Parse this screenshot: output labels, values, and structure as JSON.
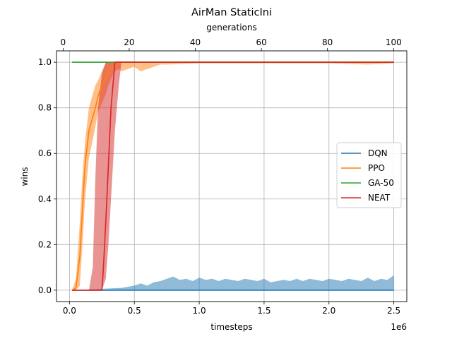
{
  "chart_data": {
    "type": "line",
    "title": "AirMan StaticIni",
    "xlabel": "timesteps",
    "ylabel": "wins",
    "x_top_label": "generations",
    "x_offset_text": "1e6",
    "xlim": [
      -0.1,
      2.6
    ],
    "ylim": [
      -0.05,
      1.05
    ],
    "top_xlim": [
      -2,
      104
    ],
    "x_ticks": [
      0.0,
      0.5,
      1.0,
      1.5,
      2.0,
      2.5
    ],
    "x_tick_labels": [
      "0.0",
      "0.5",
      "1.0",
      "1.5",
      "2.0",
      "2.5"
    ],
    "y_ticks": [
      0.0,
      0.2,
      0.4,
      0.6,
      0.8,
      1.0
    ],
    "y_tick_labels": [
      "0.0",
      "0.2",
      "0.4",
      "0.6",
      "0.8",
      "1.0"
    ],
    "top_ticks": [
      0,
      20,
      40,
      60,
      80,
      100
    ],
    "top_tick_labels": [
      "0",
      "20",
      "40",
      "60",
      "80",
      "100"
    ],
    "grid": true,
    "legend_position": "center-right",
    "series": [
      {
        "name": "DQN",
        "color": "#1f77b4",
        "x": [
          0.02,
          0.25,
          0.5,
          1.0,
          1.5,
          2.0,
          2.5
        ],
        "y": [
          0,
          0,
          0,
          0,
          0,
          0,
          0
        ],
        "band_x": [
          0.02,
          0.4,
          0.45,
          0.5,
          0.55,
          0.6,
          0.65,
          0.7,
          0.75,
          0.8,
          0.85,
          0.9,
          0.95,
          1.0,
          1.05,
          1.1,
          1.15,
          1.2,
          1.25,
          1.3,
          1.35,
          1.4,
          1.45,
          1.5,
          1.55,
          1.6,
          1.65,
          1.7,
          1.75,
          1.8,
          1.85,
          1.9,
          1.95,
          2.0,
          2.05,
          2.1,
          2.15,
          2.2,
          2.25,
          2.3,
          2.35,
          2.4,
          2.45,
          2.5
        ],
        "band_upper": [
          0,
          0.01,
          0.015,
          0.02,
          0.03,
          0.02,
          0.035,
          0.04,
          0.05,
          0.06,
          0.045,
          0.05,
          0.04,
          0.055,
          0.045,
          0.05,
          0.04,
          0.05,
          0.045,
          0.04,
          0.05,
          0.045,
          0.04,
          0.05,
          0.035,
          0.04,
          0.045,
          0.04,
          0.05,
          0.04,
          0.05,
          0.045,
          0.04,
          0.05,
          0.045,
          0.04,
          0.05,
          0.045,
          0.04,
          0.055,
          0.04,
          0.05,
          0.045,
          0.065
        ],
        "band_lower": [
          0,
          0,
          0,
          0,
          0,
          0,
          0,
          0,
          0,
          0,
          0,
          0,
          0,
          0,
          0,
          0,
          0,
          0,
          0,
          0,
          0,
          0,
          0,
          0,
          0,
          0,
          0,
          0,
          0,
          0,
          0,
          0,
          0,
          0,
          0,
          0,
          0,
          0,
          0,
          0,
          0,
          0,
          0,
          0
        ]
      },
      {
        "name": "PPO",
        "color": "#ff7f0e",
        "x": [
          0.02,
          0.05,
          0.08,
          0.1,
          0.12,
          0.15,
          0.18,
          0.2,
          0.22,
          0.25,
          0.28,
          0.3,
          0.33,
          0.35,
          0.38,
          0.4,
          0.45,
          0.5,
          0.6,
          0.7,
          1.0,
          1.5,
          2.0,
          2.5
        ],
        "y": [
          0,
          0.01,
          0.15,
          0.35,
          0.55,
          0.7,
          0.76,
          0.8,
          0.85,
          0.9,
          0.93,
          0.96,
          0.98,
          0.99,
          1.0,
          1.0,
          1.0,
          1.0,
          1.0,
          1.0,
          1.0,
          1.0,
          1.0,
          1.0
        ],
        "band_x": [
          0.02,
          0.05,
          0.08,
          0.1,
          0.12,
          0.15,
          0.18,
          0.2,
          0.22,
          0.25,
          0.28,
          0.3,
          0.33,
          0.35,
          0.38,
          0.4,
          0.45,
          0.5,
          0.55,
          0.6,
          0.65,
          0.7,
          0.75,
          1.0,
          1.5,
          2.0,
          2.3,
          2.5
        ],
        "band_upper": [
          0,
          0.05,
          0.3,
          0.5,
          0.65,
          0.8,
          0.86,
          0.9,
          0.92,
          0.96,
          1.0,
          1.0,
          1.0,
          1.0,
          1.0,
          1.0,
          1.0,
          1.0,
          1.0,
          1.0,
          1.0,
          1.0,
          1.0,
          1.0,
          1.0,
          1.0,
          1.0,
          1.0
        ],
        "band_lower": [
          0,
          0,
          0.02,
          0.2,
          0.4,
          0.58,
          0.66,
          0.72,
          0.78,
          0.82,
          0.86,
          0.9,
          0.94,
          0.96,
          0.97,
          0.96,
          0.97,
          0.98,
          0.96,
          0.97,
          0.98,
          0.99,
          0.99,
          0.995,
          0.995,
          0.995,
          0.99,
          0.995
        ]
      },
      {
        "name": "GA-50",
        "color": "#2ca02c",
        "x": [
          0.02,
          0.5,
          1.0,
          1.5,
          2.0,
          2.5
        ],
        "y": [
          1.0,
          1.0,
          1.0,
          1.0,
          1.0,
          1.0
        ]
      },
      {
        "name": "NEAT",
        "color": "#d62728",
        "x": [
          0.02,
          0.25,
          0.26,
          0.28,
          0.3,
          0.32,
          0.35,
          0.38,
          0.5,
          1.0,
          1.5,
          2.0,
          2.5
        ],
        "y": [
          0,
          0,
          0.08,
          0.3,
          0.55,
          0.8,
          1.0,
          1.0,
          1.0,
          1.0,
          1.0,
          1.0,
          1.0
        ],
        "band_x": [
          0.02,
          0.15,
          0.18,
          0.2,
          0.22,
          0.25,
          0.28,
          0.3,
          0.32,
          0.35,
          0.38,
          0.4,
          0.45,
          0.5,
          1.0,
          2.5
        ],
        "band_upper": [
          0,
          0,
          0.1,
          0.5,
          0.8,
          0.95,
          1.0,
          1.0,
          1.0,
          1.0,
          1.0,
          1.0,
          1.0,
          1.0,
          1.0,
          1.0
        ],
        "band_lower": [
          0,
          0,
          0,
          0,
          0,
          0,
          0.05,
          0.2,
          0.4,
          0.7,
          0.9,
          1.0,
          1.0,
          1.0,
          1.0,
          1.0
        ]
      }
    ]
  }
}
